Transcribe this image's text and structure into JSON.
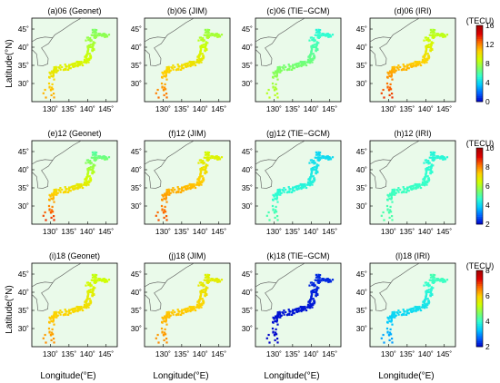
{
  "figure": {
    "xlabel": "Longitude(°E)",
    "ylabel": "Latitude(°N)",
    "x_ticks": [
      "130˚",
      "135˚",
      "140˚",
      "145˚"
    ],
    "y_ticks": [
      "45˚",
      "40˚",
      "35˚",
      "30˚"
    ],
    "colormap": [
      "#0000c8",
      "#0060ff",
      "#00c8ff",
      "#30ffd0",
      "#80ff60",
      "#d0ff00",
      "#ffd000",
      "#ff7000",
      "#e00000",
      "#a00000"
    ],
    "land_color": "#eafaea",
    "coast_color": "#555555"
  },
  "chart_data": [
    {
      "type": "map",
      "colorbar": {
        "unit": "(TECU)",
        "ticks": [
          "16",
          "12",
          "8",
          "4",
          "0"
        ],
        "range": [
          0,
          16
        ]
      },
      "panels": [
        {
          "title": "(a)06 (Geonet)",
          "model": "Geonet",
          "tec_south": 11.5,
          "tec_north": 7.0
        },
        {
          "title": "(b)06 (JIM)",
          "model": "JIM",
          "tec_south": 12.5,
          "tec_north": 7.5
        },
        {
          "title": "(c)06 (TIE−GCM)",
          "model": "TIE-GCM",
          "tec_south": 8.5,
          "tec_north": 5.0
        },
        {
          "title": "(d)06 (IRI)",
          "model": "IRI",
          "tec_south": 13.5,
          "tec_north": 8.0
        }
      ]
    },
    {
      "type": "map",
      "colorbar": {
        "unit": "(TECU)",
        "ticks": [
          "10",
          "8",
          "6",
          "4",
          "2"
        ],
        "range": [
          2,
          10
        ]
      },
      "panels": [
        {
          "title": "(e)12 (Geonet)",
          "model": "Geonet",
          "tec_south": 8.8,
          "tec_north": 5.0
        },
        {
          "title": "(f)12 (JIM)",
          "model": "JIM",
          "tec_south": 8.5,
          "tec_north": 6.5
        },
        {
          "title": "(g)12 (TIE−GCM)",
          "model": "TIE-GCM",
          "tec_south": 5.0,
          "tec_north": 4.0
        },
        {
          "title": "(h)12 (IRI)",
          "model": "IRI",
          "tec_south": 5.0,
          "tec_north": 4.5
        }
      ]
    },
    {
      "type": "map",
      "colorbar": {
        "unit": "(TECU)",
        "ticks": [
          "8",
          "6",
          "4",
          "2"
        ],
        "range": [
          2,
          8
        ]
      },
      "panels": [
        {
          "title": "(i)18 (Geonet)",
          "model": "Geonet",
          "tec_south": 6.5,
          "tec_north": 5.2
        },
        {
          "title": "(j)18 (JIM)",
          "model": "JIM",
          "tec_south": 6.5,
          "tec_north": 5.5
        },
        {
          "title": "(k)18 (TIE−GCM)",
          "model": "TIE-GCM",
          "tec_south": 2.0,
          "tec_north": 2.3
        },
        {
          "title": "(l)18 (IRI)",
          "model": "IRI",
          "tec_south": 3.0,
          "tec_north": 4.2
        }
      ]
    }
  ]
}
